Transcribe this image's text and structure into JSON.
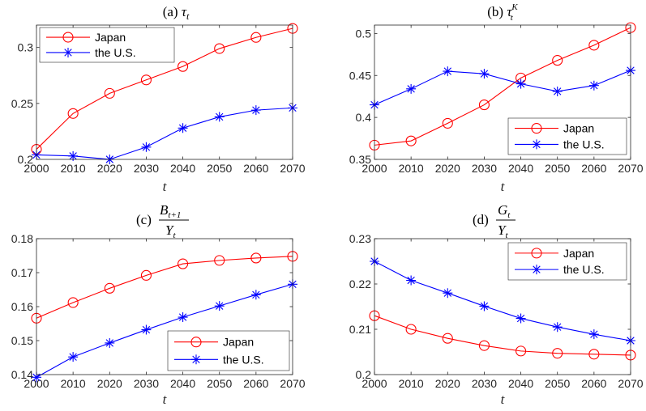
{
  "chart_data": [
    {
      "type": "line",
      "title": "(a) τ_t",
      "xlabel": "t",
      "ylabel": "",
      "x": [
        2000,
        2010,
        2020,
        2030,
        2040,
        2050,
        2060,
        2070
      ],
      "xlim": [
        2000,
        2070
      ],
      "ylim": [
        0.2,
        0.32
      ],
      "yticks": [
        0.2,
        0.25,
        0.3
      ],
      "ytick_labels": [
        "0.2",
        "0.25",
        "0.3"
      ],
      "legend": "top-left",
      "series": [
        {
          "name": "Japan",
          "color": "#ff0000",
          "marker": "circle",
          "values": [
            0.209,
            0.241,
            0.259,
            0.271,
            0.283,
            0.299,
            0.309,
            0.317
          ]
        },
        {
          "name": "the U.S.",
          "color": "#0000ff",
          "marker": "asterisk",
          "values": [
            0.204,
            0.203,
            0.2,
            0.211,
            0.228,
            0.238,
            0.244,
            0.246
          ]
        }
      ]
    },
    {
      "type": "line",
      "title": "(b) τ_t^K",
      "xlabel": "t",
      "ylabel": "",
      "x": [
        2000,
        2010,
        2020,
        2030,
        2040,
        2050,
        2060,
        2070
      ],
      "xlim": [
        2000,
        2070
      ],
      "ylim": [
        0.35,
        0.51
      ],
      "yticks": [
        0.35,
        0.4,
        0.45,
        0.5
      ],
      "ytick_labels": [
        "0.35",
        "0.4",
        "0.45",
        "0.5"
      ],
      "legend": "bottom-right",
      "series": [
        {
          "name": "Japan",
          "color": "#ff0000",
          "marker": "circle",
          "values": [
            0.367,
            0.372,
            0.393,
            0.415,
            0.447,
            0.468,
            0.486,
            0.507
          ]
        },
        {
          "name": "the U.S.",
          "color": "#0000ff",
          "marker": "asterisk",
          "values": [
            0.415,
            0.434,
            0.455,
            0.452,
            0.44,
            0.431,
            0.438,
            0.456
          ]
        }
      ]
    },
    {
      "type": "line",
      "title": "(c) B_{t+1}/Y_t",
      "xlabel": "t",
      "ylabel": "",
      "x": [
        2000,
        2010,
        2020,
        2030,
        2040,
        2050,
        2060,
        2070
      ],
      "xlim": [
        2000,
        2070
      ],
      "ylim": [
        0.14,
        0.18
      ],
      "yticks": [
        0.14,
        0.15,
        0.16,
        0.17,
        0.18
      ],
      "ytick_labels": [
        "0.14",
        "0.15",
        "0.16",
        "0.17",
        "0.18"
      ],
      "legend": "bottom-right",
      "series": [
        {
          "name": "Japan",
          "color": "#ff0000",
          "marker": "circle",
          "values": [
            0.1566,
            0.1612,
            0.1654,
            0.1692,
            0.1726,
            0.1736,
            0.1743,
            0.1748
          ]
        },
        {
          "name": "the U.S.",
          "color": "#0000ff",
          "marker": "asterisk",
          "values": [
            0.1392,
            0.1452,
            0.1493,
            0.1532,
            0.1569,
            0.1602,
            0.1635,
            0.1666
          ]
        }
      ]
    },
    {
      "type": "line",
      "title": "(d) G_t/Y_t",
      "xlabel": "t",
      "ylabel": "",
      "x": [
        2000,
        2010,
        2020,
        2030,
        2040,
        2050,
        2060,
        2070
      ],
      "xlim": [
        2000,
        2070
      ],
      "ylim": [
        0.2,
        0.23
      ],
      "yticks": [
        0.2,
        0.21,
        0.22,
        0.23
      ],
      "ytick_labels": [
        "0.2",
        "0.21",
        "0.22",
        "0.23"
      ],
      "legend": "top-right",
      "series": [
        {
          "name": "Japan",
          "color": "#ff0000",
          "marker": "circle",
          "values": [
            0.213,
            0.21,
            0.208,
            0.2064,
            0.2052,
            0.2047,
            0.2045,
            0.2043
          ]
        },
        {
          "name": "the U.S.",
          "color": "#0000ff",
          "marker": "asterisk",
          "values": [
            0.225,
            0.2208,
            0.218,
            0.2151,
            0.2124,
            0.2105,
            0.2089,
            0.2075
          ]
        }
      ]
    }
  ]
}
